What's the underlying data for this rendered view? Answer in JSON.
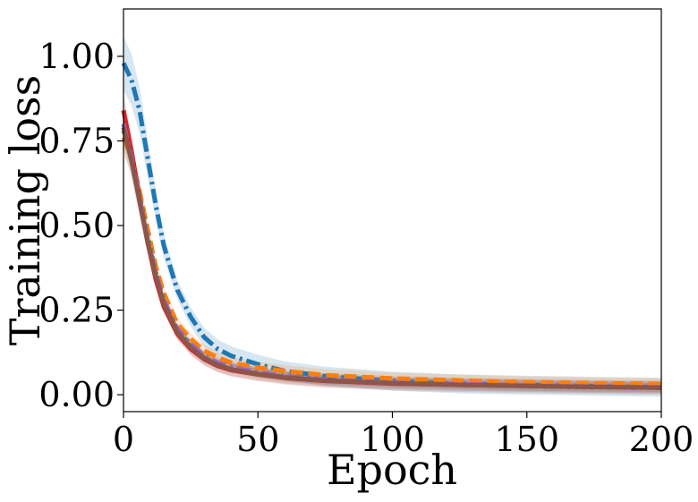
{
  "chart_data": {
    "type": "line",
    "xlabel": "Epoch",
    "ylabel": "Training loss",
    "xlim": [
      0,
      200
    ],
    "ylim": [
      -0.05,
      1.14
    ],
    "xticks": [
      0,
      50,
      100,
      150,
      200
    ],
    "xtick_labels": [
      "0",
      "50",
      "100",
      "150",
      "200"
    ],
    "yticks": [
      0.0,
      0.25,
      0.5,
      0.75,
      1.0
    ],
    "ytick_labels": [
      "0.00",
      "0.25",
      "0.50",
      "0.75",
      "1.00"
    ],
    "grid": false,
    "legend": "none",
    "x": [
      0,
      3,
      6,
      9,
      12,
      15,
      20,
      25,
      30,
      35,
      40,
      50,
      60,
      75,
      100,
      125,
      150,
      175,
      200
    ],
    "series": [
      {
        "color": "#1f77b4",
        "dash": "dashdot",
        "band": 0.08,
        "values": [
          0.98,
          0.93,
          0.84,
          0.7,
          0.56,
          0.44,
          0.31,
          0.23,
          0.17,
          0.135,
          0.115,
          0.09,
          0.07,
          0.055,
          0.04,
          0.032,
          0.028,
          0.025,
          0.022
        ]
      },
      {
        "color": "#ff7f0e",
        "dash": "dashed",
        "band": 0.05,
        "values": [
          0.76,
          0.7,
          0.6,
          0.49,
          0.38,
          0.3,
          0.21,
          0.165,
          0.13,
          0.11,
          0.095,
          0.08,
          0.07,
          0.058,
          0.048,
          0.042,
          0.037,
          0.034,
          0.032
        ]
      },
      {
        "color": "#2ca02c",
        "dash": "dotted",
        "band": 0.04,
        "values": [
          0.78,
          0.7,
          0.59,
          0.47,
          0.36,
          0.28,
          0.19,
          0.145,
          0.11,
          0.09,
          0.078,
          0.063,
          0.052,
          0.042,
          0.034,
          0.029,
          0.025,
          0.022,
          0.02
        ]
      },
      {
        "color": "#d62728",
        "dash": "solid",
        "band": 0.05,
        "values": [
          0.84,
          0.72,
          0.58,
          0.45,
          0.34,
          0.26,
          0.18,
          0.135,
          0.105,
          0.085,
          0.073,
          0.06,
          0.05,
          0.041,
          0.033,
          0.029,
          0.026,
          0.023,
          0.021
        ]
      },
      {
        "color": "#9467bd",
        "dash": "dashdot",
        "band": 0.04,
        "values": [
          0.8,
          0.7,
          0.58,
          0.46,
          0.36,
          0.28,
          0.195,
          0.15,
          0.115,
          0.095,
          0.082,
          0.066,
          0.055,
          0.045,
          0.036,
          0.031,
          0.027,
          0.024,
          0.022
        ]
      },
      {
        "color": "#8c564b",
        "dash": "solid",
        "band": 0.06,
        "values": [
          0.79,
          0.69,
          0.57,
          0.45,
          0.35,
          0.27,
          0.185,
          0.14,
          0.108,
          0.088,
          0.075,
          0.061,
          0.051,
          0.042,
          0.034,
          0.029,
          0.026,
          0.023,
          0.021
        ]
      }
    ]
  }
}
